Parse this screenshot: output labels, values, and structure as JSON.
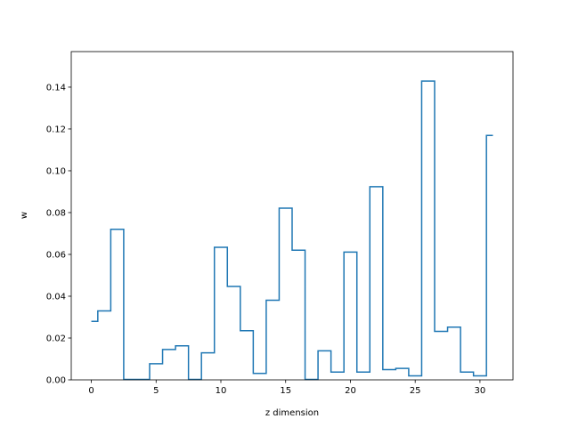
{
  "chart_data": {
    "type": "line",
    "drawstyle": "steps-mid",
    "xlabel": "z dimension",
    "ylabel": "w",
    "xlim": [
      -1.55,
      32.55
    ],
    "ylim": [
      0,
      0.157
    ],
    "xticks": [
      0,
      5,
      10,
      15,
      20,
      25,
      30
    ],
    "yticks": [
      0.0,
      0.02,
      0.04,
      0.06,
      0.08,
      0.1,
      0.12,
      0.14
    ],
    "xtick_labels": [
      "0",
      "5",
      "10",
      "15",
      "20",
      "25",
      "30"
    ],
    "ytick_labels": [
      "0.00",
      "0.02",
      "0.04",
      "0.06",
      "0.08",
      "0.10",
      "0.12",
      "0.14"
    ],
    "grid": false,
    "series_color": "#1f77b4",
    "x": [
      0,
      1,
      2,
      3,
      4,
      5,
      6,
      7,
      8,
      9,
      10,
      11,
      12,
      13,
      14,
      15,
      16,
      17,
      18,
      19,
      20,
      21,
      22,
      23,
      24,
      25,
      26,
      27,
      28,
      29,
      30,
      31
    ],
    "values": [
      0.028,
      0.033,
      0.072,
      0.0002,
      0.0002,
      0.0077,
      0.0145,
      0.0163,
      0.0002,
      0.0129,
      0.0634,
      0.0447,
      0.0235,
      0.0031,
      0.0381,
      0.0821,
      0.062,
      0.0002,
      0.0139,
      0.0037,
      0.0611,
      0.0037,
      0.0924,
      0.0049,
      0.0055,
      0.0019,
      0.1429,
      0.0232,
      0.0252,
      0.0037,
      0.0019,
      0.1169
    ]
  }
}
